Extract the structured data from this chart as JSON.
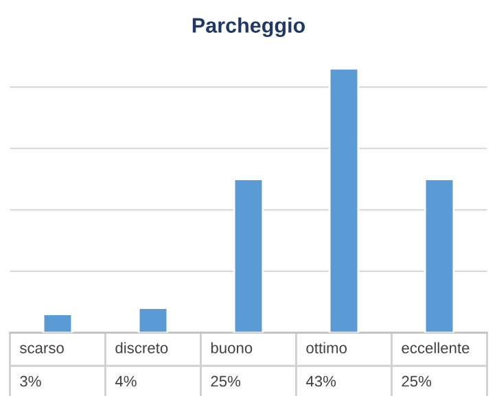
{
  "chart_data": {
    "type": "bar",
    "title": "Parcheggio",
    "categories": [
      "scarso",
      "discreto",
      "buono",
      "ottimo",
      "eccellente"
    ],
    "values": [
      3,
      4,
      25,
      43,
      25
    ],
    "value_labels": [
      "3%",
      "4%",
      "25%",
      "43%",
      "25%"
    ],
    "color": "#5b9bd5",
    "grid": "y",
    "tick_labels": false
  }
}
